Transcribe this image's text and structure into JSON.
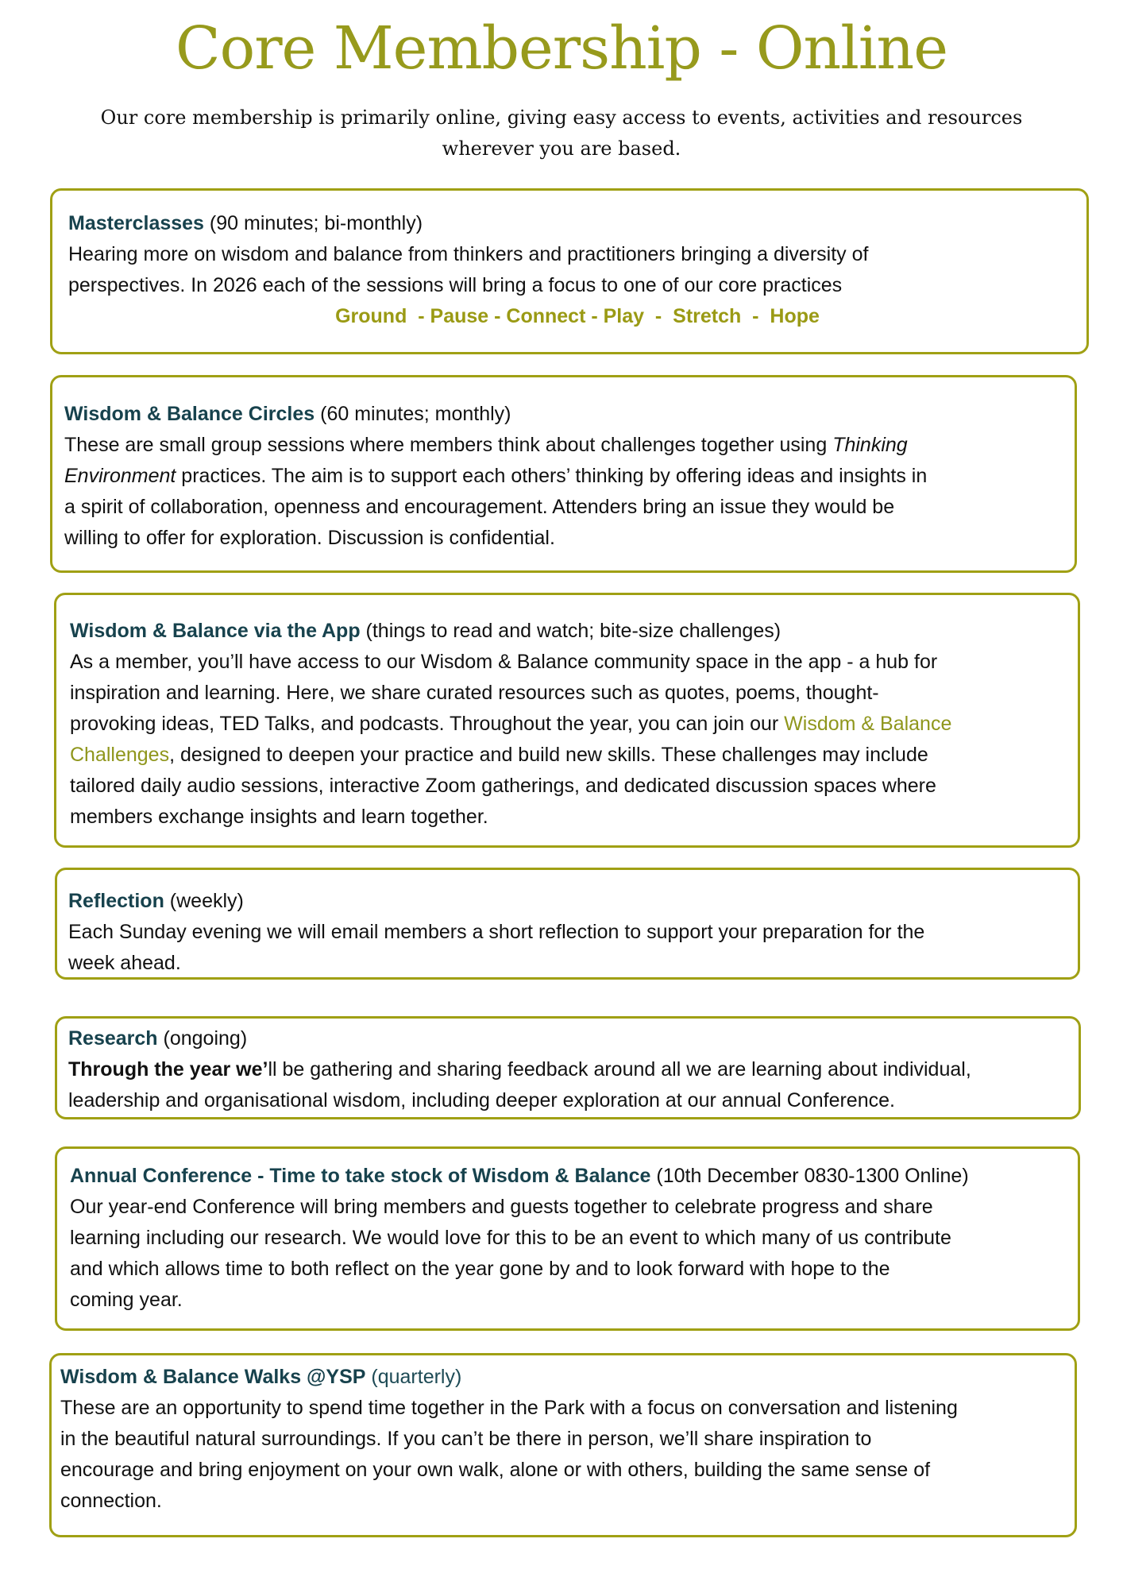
{
  "title": "Core Membership - Online",
  "intro": "Our core membership is primarily online, giving easy access to events, activities and resources wherever you are based.",
  "colors": {
    "accent": "#9a9a14",
    "heading": "#17424d",
    "border": "#a0a014"
  },
  "sections": [
    {
      "id": "masterclasses",
      "lines": [
        [
          {
            "t": "Masterclasses",
            "s": "b"
          },
          {
            "t": " (90 minutes; bi-monthly)",
            "s": ""
          }
        ],
        [
          {
            "t": "Hearing more on wisdom and balance from thinkers and practitioners bringing a diversity of",
            "s": ""
          }
        ],
        [
          {
            "t": "perspectives. In 2026 each of the sessions will bring a focus to one of our core practices",
            "s": ""
          }
        ]
      ],
      "practices": "Ground  - Pause - Connect - Play  -  Stretch  -  Hope"
    },
    {
      "id": "circles",
      "lines": [
        [
          {
            "t": "Wisdom & Balance Circles",
            "s": "b"
          },
          {
            "t": " (60 minutes; monthly)",
            "s": ""
          }
        ],
        [
          {
            "t": "These are small group sessions where members think about challenges together using ",
            "s": ""
          },
          {
            "t": "Thinking",
            "s": "i"
          }
        ],
        [
          {
            "t": "Environment",
            "s": "i"
          },
          {
            "t": " practices. The aim is to support each others’ thinking by offering ideas and insights in",
            "s": ""
          }
        ],
        [
          {
            "t": "a spirit of collaboration, openness and encouragement. Attenders bring an issue they would be",
            "s": ""
          }
        ],
        [
          {
            "t": "willing to offer for exploration. Discussion is confidential.",
            "s": ""
          }
        ]
      ]
    },
    {
      "id": "app",
      "lines": [
        [
          {
            "t": "Wisdom & Balance via the App",
            "s": "b"
          },
          {
            "t": "  (things to read and watch; bite-size challenges)",
            "s": ""
          }
        ],
        [
          {
            "t": "As a member, you’ll have access to our Wisdom & Balance community space in the app - a hub for",
            "s": ""
          }
        ],
        [
          {
            "t": "inspiration and learning. Here, we share curated resources such as quotes, poems, thought-",
            "s": ""
          }
        ],
        [
          {
            "t": "provoking ideas, TED Talks, and podcasts. Throughout the year, you can join our ",
            "s": ""
          },
          {
            "t": "Wisdom & Balance",
            "s": "link"
          }
        ],
        [
          {
            "t": "Challenges",
            "s": "link"
          },
          {
            "t": ", designed to deepen your practice and build new skills. These challenges may include",
            "s": ""
          }
        ],
        [
          {
            "t": "tailored daily audio sessions, interactive Zoom gatherings, and dedicated discussion spaces where",
            "s": ""
          }
        ],
        [
          {
            "t": "members exchange insights and learn together.",
            "s": ""
          }
        ]
      ]
    },
    {
      "id": "reflection",
      "lines": [
        [
          {
            "t": "Reflection",
            "s": "b"
          },
          {
            "t": " (weekly)",
            "s": ""
          }
        ],
        [
          {
            "t": "Each Sunday evening we will email members a short reflection to support your preparation for the",
            "s": ""
          }
        ],
        [
          {
            "t": "week ahead.",
            "s": ""
          }
        ]
      ]
    },
    {
      "id": "research",
      "lines": [
        [
          {
            "t": "Research",
            "s": "b"
          },
          {
            "t": " (ongoing)",
            "s": ""
          }
        ],
        [
          {
            "t": "Through the year we’",
            "s": "bb"
          },
          {
            "t": "ll be gathering and sharing feedback around all we are learning about individual,",
            "s": ""
          }
        ],
        [
          {
            "t": "leadership and organisational wisdom, including deeper exploration at our annual Conference.",
            "s": ""
          }
        ]
      ]
    },
    {
      "id": "conference",
      "lines": [
        [
          {
            "t": "Annual Conference - Time to take stock of Wisdom & Balance",
            "s": "b"
          },
          {
            "t": " (10th December 0830-1300 Online)",
            "s": ""
          }
        ],
        [
          {
            "t": "Our year-end Conference will bring members and guests together to celebrate progress and share",
            "s": ""
          }
        ],
        [
          {
            "t": "learning including our research. We would love for this to be an event to which many of us contribute",
            "s": ""
          }
        ],
        [
          {
            "t": "and which allows time to both reflect on the year gone by and to look forward with hope to the",
            "s": ""
          }
        ],
        [
          {
            "t": "coming year.",
            "s": ""
          }
        ]
      ]
    },
    {
      "id": "walks",
      "lines": [
        [
          {
            "t": "Wisdom & Balance Walks @YSP",
            "s": "b"
          },
          {
            "t": " (quarterly)",
            "s": "teal"
          }
        ],
        [
          {
            "t": "These are an opportunity to spend time together in the Park with a focus on conversation and listening",
            "s": ""
          }
        ],
        [
          {
            "t": "in the beautiful natural surroundings. If you can’t be there in person, we’ll share inspiration to",
            "s": ""
          }
        ],
        [
          {
            "t": "encourage and bring enjoyment on your own walk, alone or with others, building the same sense of",
            "s": ""
          }
        ],
        [
          {
            "t": "connection.",
            "s": ""
          }
        ]
      ]
    }
  ]
}
